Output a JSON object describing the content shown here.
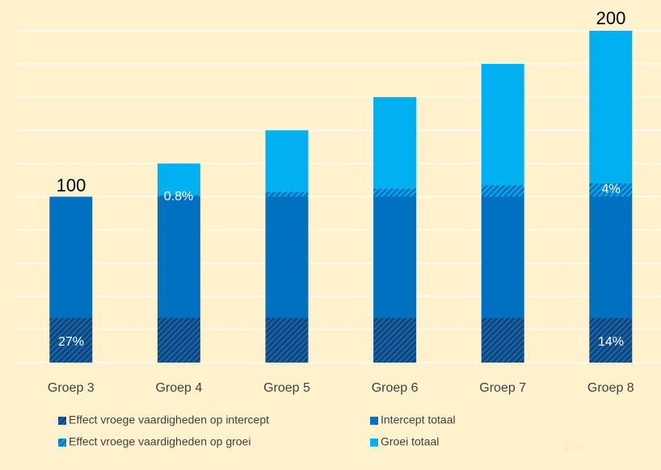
{
  "chart_data": {
    "type": "stacked_bar",
    "categories": [
      "Groep 3",
      "Groep 4",
      "Groep 5",
      "Groep 6",
      "Groep 7",
      "Groep 8"
    ],
    "series": [
      {
        "name": "Effect vroege vaardigheden op intercept",
        "color": "#0070c0",
        "base_color": "#1f3f6e",
        "hatch": true,
        "values": [
          27,
          27,
          27,
          27,
          27,
          27
        ]
      },
      {
        "name": "Intercept totaal",
        "color": "#0070c0",
        "hatch": false,
        "values": [
          73,
          73,
          73,
          73,
          73,
          73
        ]
      },
      {
        "name": "Effect vroege vaardigheden op groei",
        "color": "#00b0f0",
        "base_color": "#0070c0",
        "hatch": true,
        "values": [
          0,
          1,
          3,
          5,
          7,
          8
        ]
      },
      {
        "name": "Groei totaal",
        "color": "#00b0f0",
        "hatch": false,
        "values": [
          0,
          19,
          37,
          55,
          73,
          92
        ]
      }
    ],
    "annotations": [
      "100",
      "200",
      "27%",
      "0.8%",
      "4%",
      "14%",
      "15%"
    ],
    "ylim": [
      0,
      200
    ],
    "yticks": [
      0,
      20,
      40,
      60,
      80,
      100,
      120,
      140,
      160,
      180,
      200
    ],
    "grid": true
  }
}
